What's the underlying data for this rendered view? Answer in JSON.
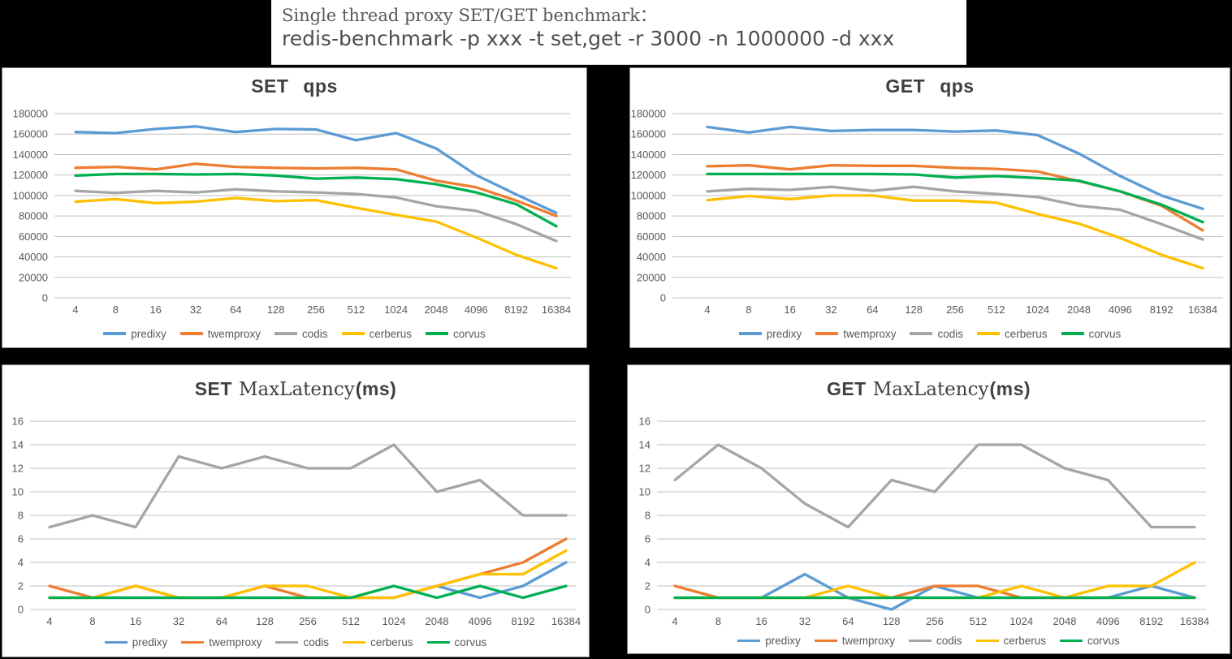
{
  "header": {
    "line1": "Single thread proxy SET/GET benchmark：",
    "line2": "redis-benchmark -p xxx -t set,get -r 3000 -n 1000000 -d xxx"
  },
  "series_names": [
    "predixy",
    "twemproxy",
    "codis",
    "cerberus",
    "corvus"
  ],
  "categories": [
    "4",
    "8",
    "16",
    "32",
    "64",
    "128",
    "256",
    "512",
    "1024",
    "2048",
    "4096",
    "8192",
    "16384"
  ],
  "colors": {
    "predixy": "#5B9BD5",
    "twemproxy": "#ED7D31",
    "codis": "#A5A5A5",
    "cerberus": "#FFC000",
    "corvus": "#00B050",
    "grid": "#BFBFBF",
    "axis_text": "#595959",
    "title_text": "#404040"
  },
  "chart_data": [
    {
      "id": "set-qps",
      "type": "line",
      "title_parts": [
        "SET",
        "qps"
      ],
      "xlabel": "",
      "ylabel": "",
      "ylim": [
        0,
        180000
      ],
      "ytick_step": 20000,
      "legend_position": "bottom",
      "grid": true,
      "series": [
        {
          "name": "predixy",
          "values": [
            162000,
            161000,
            165000,
            167500,
            162000,
            165000,
            164500,
            154000,
            161000,
            146000,
            120000,
            101000,
            83000
          ]
        },
        {
          "name": "twemproxy",
          "values": [
            127000,
            128000,
            125500,
            131000,
            128000,
            127000,
            126500,
            127000,
            125500,
            114500,
            108000,
            95000,
            80000
          ]
        },
        {
          "name": "codis",
          "values": [
            104500,
            102500,
            104500,
            103000,
            106000,
            104000,
            103000,
            101500,
            98000,
            89500,
            85000,
            72000,
            55500
          ]
        },
        {
          "name": "cerberus",
          "values": [
            94000,
            96500,
            92500,
            94000,
            97500,
            94500,
            95500,
            88000,
            81000,
            74500,
            59000,
            42000,
            29000
          ]
        },
        {
          "name": "corvus",
          "values": [
            119500,
            121000,
            121000,
            120500,
            121000,
            119500,
            116500,
            117500,
            116000,
            111000,
            103000,
            91500,
            70000
          ]
        }
      ]
    },
    {
      "id": "get-qps",
      "type": "line",
      "title_parts": [
        "GET",
        "qps"
      ],
      "xlabel": "",
      "ylabel": "",
      "ylim": [
        0,
        180000
      ],
      "ytick_step": 20000,
      "legend_position": "bottom",
      "grid": true,
      "series": [
        {
          "name": "predixy",
          "values": [
            167000,
            161500,
            167000,
            163000,
            164000,
            164000,
            162500,
            163500,
            159000,
            141000,
            119000,
            100000,
            87000
          ]
        },
        {
          "name": "twemproxy",
          "values": [
            128500,
            129500,
            125500,
            129500,
            129000,
            129000,
            127000,
            126000,
            123500,
            114000,
            104000,
            90000,
            66000
          ]
        },
        {
          "name": "codis",
          "values": [
            104000,
            106500,
            105500,
            108500,
            104500,
            108500,
            104000,
            101500,
            98500,
            90000,
            86000,
            72000,
            57000
          ]
        },
        {
          "name": "cerberus",
          "values": [
            95500,
            99500,
            96500,
            100000,
            100000,
            95000,
            95000,
            93000,
            82000,
            72500,
            58500,
            42000,
            29000
          ]
        },
        {
          "name": "corvus",
          "values": [
            121000,
            121000,
            121000,
            121000,
            121000,
            120500,
            117500,
            119000,
            117000,
            114500,
            104000,
            91000,
            74000
          ]
        }
      ]
    },
    {
      "id": "set-maxlatency",
      "type": "line",
      "title_parts": [
        "SET",
        "MaxLatency",
        "(ms)"
      ],
      "xlabel": "",
      "ylabel": "",
      "ylim": [
        0,
        16
      ],
      "ytick_step": 2,
      "legend_position": "bottom",
      "grid": true,
      "series": [
        {
          "name": "predixy",
          "values": [
            1,
            1,
            1,
            1,
            1,
            1,
            1,
            1,
            1,
            2,
            1,
            2,
            4
          ]
        },
        {
          "name": "twemproxy",
          "values": [
            2,
            1,
            2,
            1,
            1,
            2,
            1,
            1,
            1,
            2,
            3,
            4,
            6
          ]
        },
        {
          "name": "codis",
          "values": [
            7,
            8,
            7,
            13,
            12,
            13,
            12,
            12,
            14,
            10,
            11,
            8,
            8
          ]
        },
        {
          "name": "cerberus",
          "values": [
            1,
            1,
            2,
            1,
            1,
            2,
            2,
            1,
            1,
            2,
            3,
            3,
            5
          ]
        },
        {
          "name": "corvus",
          "values": [
            1,
            1,
            1,
            1,
            1,
            1,
            1,
            1,
            2,
            1,
            2,
            1,
            2
          ]
        }
      ]
    },
    {
      "id": "get-maxlatency",
      "type": "line",
      "title_parts": [
        "GET",
        "MaxLatency",
        "(ms)"
      ],
      "xlabel": "",
      "ylabel": "",
      "ylim": [
        0,
        16
      ],
      "ytick_step": 2,
      "legend_position": "bottom",
      "grid": true,
      "series": [
        {
          "name": "predixy",
          "values": [
            1,
            1,
            1,
            3,
            1,
            0,
            2,
            1,
            1,
            1,
            1,
            2,
            1
          ]
        },
        {
          "name": "twemproxy",
          "values": [
            2,
            1,
            1,
            1,
            1,
            1,
            2,
            2,
            1,
            1,
            1,
            1,
            1
          ]
        },
        {
          "name": "codis",
          "values": [
            11,
            14,
            12,
            9,
            7,
            11,
            10,
            14,
            14,
            12,
            11,
            7,
            7
          ]
        },
        {
          "name": "cerberus",
          "values": [
            1,
            1,
            1,
            1,
            2,
            1,
            1,
            1,
            2,
            1,
            2,
            2,
            4
          ]
        },
        {
          "name": "corvus",
          "values": [
            1,
            1,
            1,
            1,
            1,
            1,
            1,
            1,
            1,
            1,
            1,
            1,
            1
          ]
        }
      ]
    }
  ]
}
